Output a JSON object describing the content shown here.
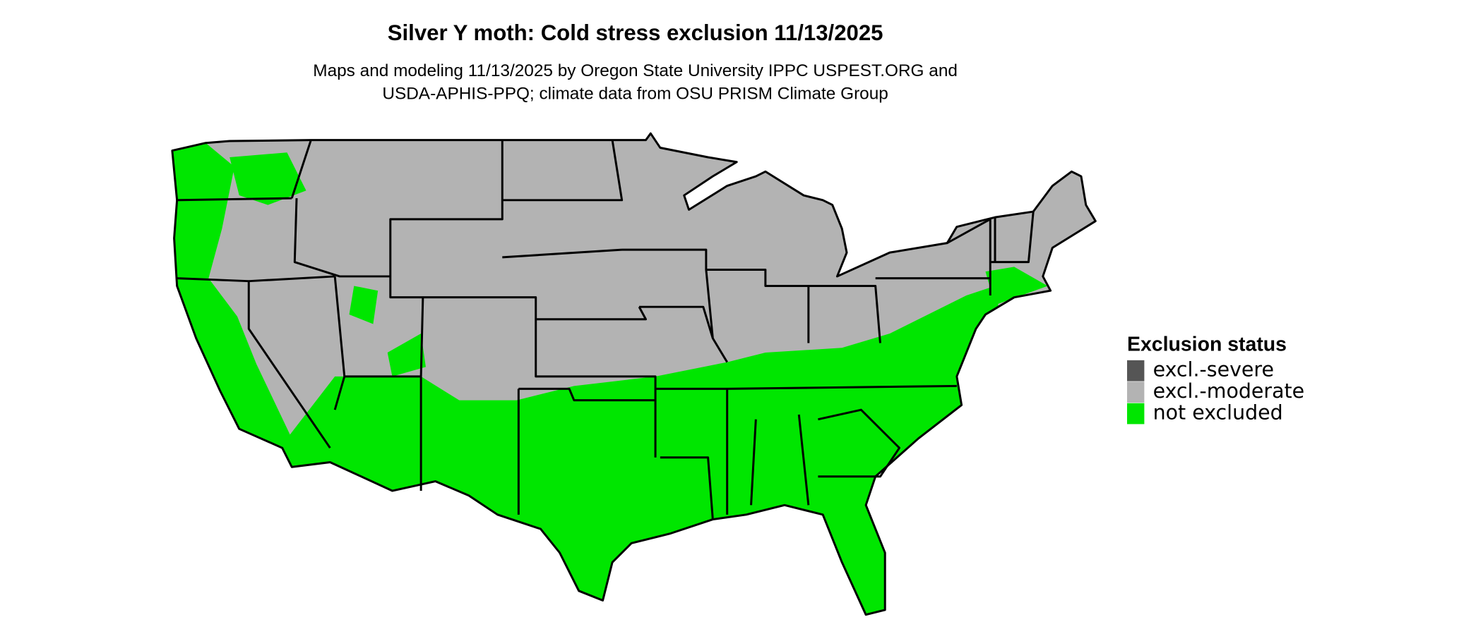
{
  "title": "Silver Y moth: Cold stress exclusion 11/13/2025",
  "subtitle": [
    "Maps and modeling 11/13/2025 by Oregon State University IPPC USPEST.ORG and",
    "USDA-APHIS-PPQ; climate data from OSU PRISM Climate Group"
  ],
  "legend": {
    "title": "Exclusion status",
    "items": [
      {
        "label": "excl.-severe",
        "color": "#555555"
      },
      {
        "label": "excl.-moderate",
        "color": "#b3b3b3"
      },
      {
        "label": "not excluded",
        "color": "#00e600"
      }
    ]
  }
}
